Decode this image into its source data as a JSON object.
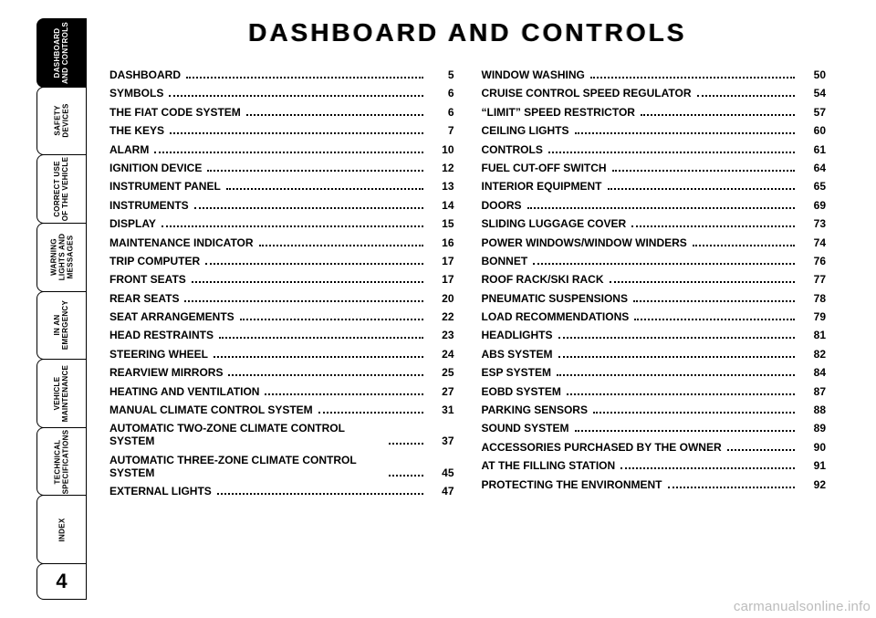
{
  "page_number": "4",
  "title": "DASHBOARD AND CONTROLS",
  "watermark": "carmanualsonline.info",
  "tabs": [
    {
      "label": "DASHBOARD\nAND CONTROLS",
      "active": true
    },
    {
      "label": "SAFETY\nDEVICES",
      "active": false
    },
    {
      "label": "CORRECT USE\nOF THE VEHICLE",
      "active": false
    },
    {
      "label": "WARNING\nLIGHTS AND\nMESSAGES",
      "active": false
    },
    {
      "label": "IN AN\nEMERGENCY",
      "active": false
    },
    {
      "label": "VEHICLE\nMAINTENANCE",
      "active": false
    },
    {
      "label": "TECHNICAL\nSPECIFICATIONS",
      "active": false
    },
    {
      "label": "INDEX",
      "active": false
    }
  ],
  "toc": {
    "left": [
      {
        "label": "DASHBOARD",
        "page": "5"
      },
      {
        "label": "SYMBOLS",
        "page": "6"
      },
      {
        "label": "THE FIAT CODE SYSTEM",
        "page": "6"
      },
      {
        "label": "THE KEYS",
        "page": "7"
      },
      {
        "label": "ALARM",
        "page": "10"
      },
      {
        "label": "IGNITION DEVICE",
        "page": "12"
      },
      {
        "label": "INSTRUMENT PANEL",
        "page": "13"
      },
      {
        "label": "INSTRUMENTS",
        "page": "14"
      },
      {
        "label": "DISPLAY",
        "page": "15"
      },
      {
        "label": "MAINTENANCE INDICATOR",
        "page": "16"
      },
      {
        "label": "TRIP COMPUTER",
        "page": "17"
      },
      {
        "label": "FRONT SEATS",
        "page": "17"
      },
      {
        "label": "REAR SEATS",
        "page": "20"
      },
      {
        "label": "SEAT ARRANGEMENTS",
        "page": "22"
      },
      {
        "label": "HEAD RESTRAINTS",
        "page": "23"
      },
      {
        "label": "STEERING WHEEL",
        "page": "24"
      },
      {
        "label": "REARVIEW MIRRORS",
        "page": "25"
      },
      {
        "label": "HEATING AND VENTILATION",
        "page": "27"
      },
      {
        "label": "MANUAL CLIMATE CONTROL SYSTEM",
        "page": "31"
      },
      {
        "label": "AUTOMATIC TWO-ZONE CLIMATE CONTROL SYSTEM",
        "page": "37",
        "wrap": true
      },
      {
        "label": "AUTOMATIC THREE-ZONE CLIMATE CONTROL SYSTEM",
        "page": "45",
        "wrap": true
      },
      {
        "label": "EXTERNAL LIGHTS",
        "page": "47"
      }
    ],
    "right": [
      {
        "label": "WINDOW WASHING",
        "page": "50"
      },
      {
        "label": "CRUISE CONTROL SPEED REGULATOR",
        "page": "54"
      },
      {
        "label": "“LIMIT” SPEED RESTRICTOR",
        "page": "57"
      },
      {
        "label": "CEILING LIGHTS",
        "page": "60"
      },
      {
        "label": "CONTROLS",
        "page": "61"
      },
      {
        "label": "FUEL CUT-OFF SWITCH",
        "page": "64"
      },
      {
        "label": "INTERIOR EQUIPMENT",
        "page": "65"
      },
      {
        "label": "DOORS",
        "page": "69"
      },
      {
        "label": "SLIDING LUGGAGE COVER",
        "page": "73"
      },
      {
        "label": "POWER WINDOWS/WINDOW WINDERS",
        "page": "74"
      },
      {
        "label": "BONNET",
        "page": "76"
      },
      {
        "label": "ROOF RACK/SKI RACK",
        "page": "77"
      },
      {
        "label": "PNEUMATIC SUSPENSIONS",
        "page": "78"
      },
      {
        "label": "LOAD RECOMMENDATIONS",
        "page": "79"
      },
      {
        "label": "HEADLIGHTS",
        "page": "81"
      },
      {
        "label": "ABS SYSTEM",
        "page": "82"
      },
      {
        "label": "ESP SYSTEM",
        "page": "84"
      },
      {
        "label": "EOBD SYSTEM",
        "page": "87"
      },
      {
        "label": "PARKING SENSORS",
        "page": "88"
      },
      {
        "label": "SOUND SYSTEM",
        "page": "89"
      },
      {
        "label": "ACCESSORIES PURCHASED BY THE OWNER",
        "page": "90"
      },
      {
        "label": "AT THE FILLING STATION",
        "page": "91"
      },
      {
        "label": "PROTECTING THE ENVIRONMENT",
        "page": "92"
      }
    ]
  }
}
